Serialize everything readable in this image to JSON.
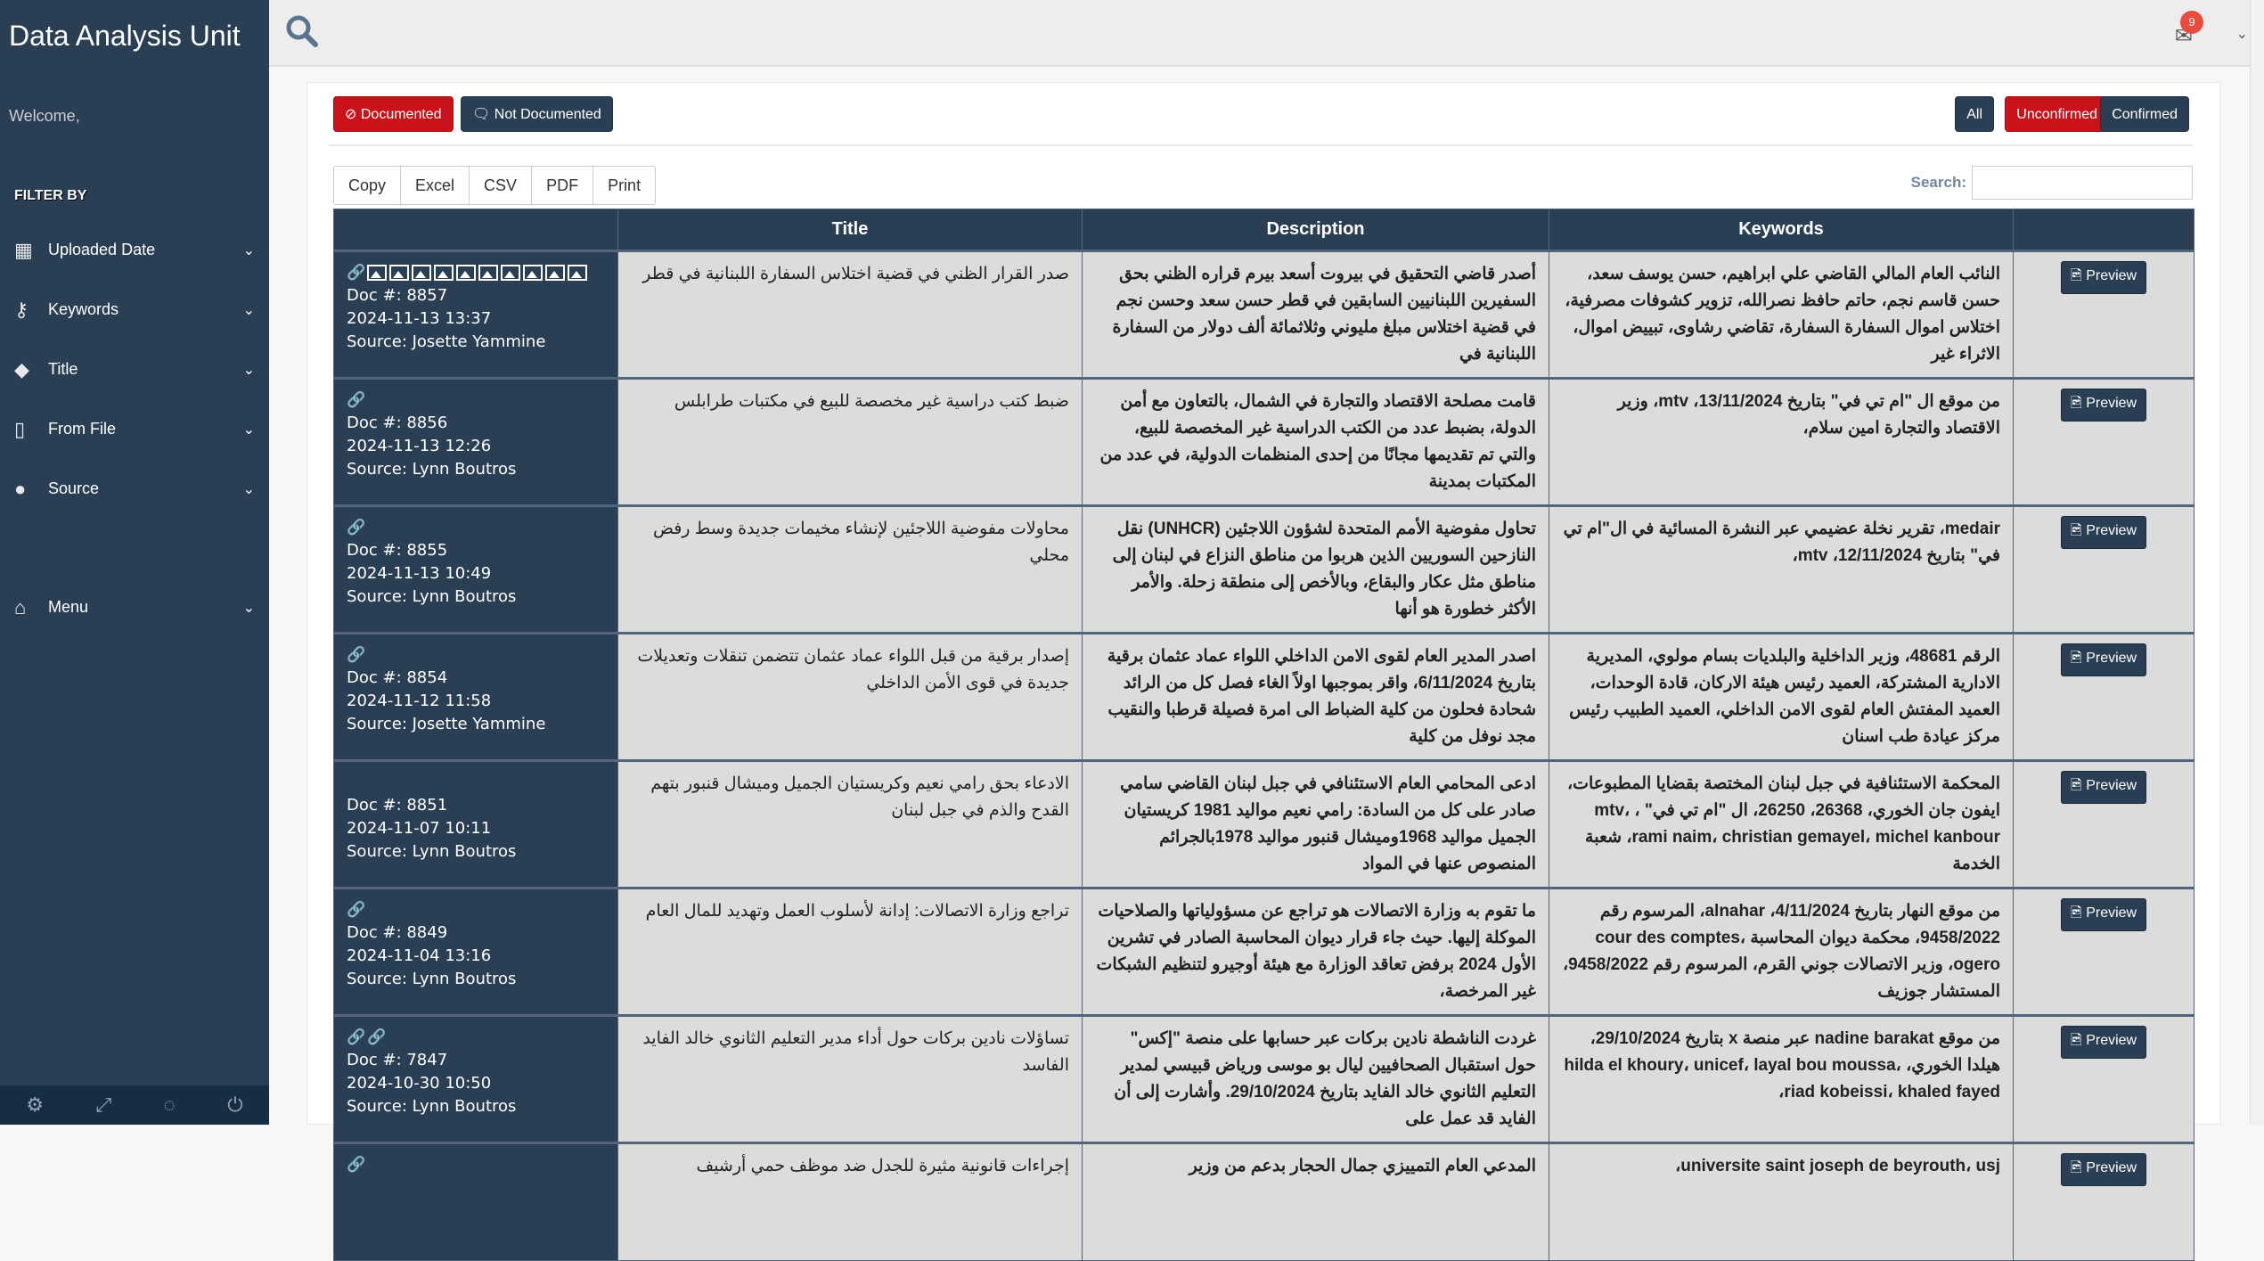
{
  "sidebar": {
    "brand": "Data Analysis Unit",
    "welcome": "Welcome,",
    "filter_by": "FILTER BY",
    "items": [
      {
        "label": "Uploaded Date",
        "icon": "calendar-icon"
      },
      {
        "label": "Keywords",
        "icon": "key-icon"
      },
      {
        "label": "Title",
        "icon": "tag-icon"
      },
      {
        "label": "From File",
        "icon": "file-icon"
      },
      {
        "label": "Source",
        "icon": "user-icon"
      },
      {
        "label": "Menu",
        "icon": "home-icon"
      }
    ],
    "footer_icons": [
      "gear-icon",
      "fullscreen-icon",
      "eye-slash-icon",
      "power-icon"
    ]
  },
  "topbar": {
    "notifications": "9"
  },
  "filters": {
    "documented": "Documented",
    "not_documented": "Not Documented",
    "all": "All",
    "unconfirmed": "Unconfirmed",
    "confirmed": "Confirmed"
  },
  "export": [
    "Copy",
    "Excel",
    "CSV",
    "PDF",
    "Print"
  ],
  "search": {
    "label": "Search:",
    "value": ""
  },
  "colors": {
    "navy": "#2a3f54",
    "red": "#c9121a"
  },
  "table": {
    "headers": [
      "",
      "Title",
      "Description",
      "Keywords",
      ""
    ],
    "preview_label": "Preview",
    "rows": [
      {
        "links": 1,
        "images": 10,
        "doc": "Doc #: 8857",
        "date": "2024-11-13 13:37",
        "source": "Source: Josette Yammine",
        "title": "صدر القرار الظني في قضية اختلاس السفارة اللبنانية في قطر",
        "description": "أصدر قاضي التحقيق في بيروت أسعد بيرم قراره الظني بحق السفيرين اللبنانيين السابقين في قطر حسن سعد وحسن نجم في قضية اختلاس مبلغ مليوني وثلاثمائة ألف دولار من السفارة اللبنانية في",
        "keywords": "النائب العام المالي القاضي علي ابراهيم، حسن يوسف سعد، حسن قاسم نجم، حاتم حافظ نصرالله، تزوير كشوفات مصرفية، اختلاس اموال السفارة السفارة، تقاضي رشاوى، تبييض اموال، الاثراء غير"
      },
      {
        "links": 1,
        "images": 0,
        "doc": "Doc #: 8856",
        "date": "2024-11-13 12:26",
        "source": "Source: Lynn Boutros",
        "title": "ضبط كتب دراسية غير مخصصة للبيع في مكتبات طرابلس",
        "description": "قامت مصلحة الاقتصاد والتجارة في الشمال، بالتعاون مع أمن الدولة، بضبط عدد من الكتب الدراسية غير المخصصة للبيع، والتي تم تقديمها مجانًا من إحدى المنظمات الدولية، في عدد من المكتبات بمدينة",
        "keywords": "من موقع ال \"ام تي في\" بتاريخ 13/11/2024، mtv، وزير الاقتصاد والتجارة امين سلام،"
      },
      {
        "links": 1,
        "images": 0,
        "doc": "Doc #: 8855",
        "date": "2024-11-13 10:49",
        "source": "Source: Lynn Boutros",
        "title": "محاولات مفوضية اللاجئين لإنشاء مخيمات جديدة وسط رفض محلي",
        "description": "تحاول مفوضية الأمم المتحدة لشؤون اللاجئين (UNHCR) نقل النازحين السوريين الذين هربوا من مناطق النزاع في لبنان إلى مناطق مثل عكار والبقاع، وبالأخص إلى منطقة زحلة. والأمر الأكثر خطورة هو أنها",
        "keywords": "medair، تقرير نخلة عضيمي عبر النشرة المسائية في ال\"ام تي في\" بتاريخ 12/11/2024، mtv،"
      },
      {
        "links": 1,
        "images": 0,
        "doc": "Doc #: 8854",
        "date": "2024-11-12 11:58",
        "source": "Source: Josette Yammine",
        "title": "إصدار برقية من قبل اللواء عماد عثمان تتضمن تنقلات وتعديلات جديدة في قوى الأمن الداخلي",
        "description": "اصدر المدير العام لقوى الامن الداخلي اللواء عماد عثمان برقية بتاريخ 6/11/2024، واقر بموجبها اولاً الغاء فصل كل من الرائد شحادة فحلون من كلية الضباط الى امرة فصيلة قرطبا والنقيب مجد نوفل من كلية",
        "keywords": "الرقم 48681، وزير الداخلية والبلديات بسام مولوي، المديرية الادارية المشتركة، العميد رئيس هيئة الاركان، قادة الوحدات، العميد المفتش العام لقوى الامن الداخلي، العميد الطبيب رئيس مركز عيادة طب اسنان"
      },
      {
        "links": 0,
        "images": 0,
        "doc": "Doc #: 8851",
        "date": "2024-11-07 10:11",
        "source": "Source: Lynn Boutros",
        "title": "الادعاء بحق رامي نعيم وكريستيان الجميل وميشال قنبور بتهم القدح والذم في جبل لبنان",
        "description": "ادعى المحامي العام الاستئنافي في جبل لبنان القاضي سامي صادر على كل من السادة: رامي نعيم مواليد 1981 كريستيان الجميل مواليد 1968وميشال قنبور مواليد 1978بالجرائم المنصوص عنها في المواد",
        "keywords": "المحكمة الاستئنافية في جبل لبنان المختصة بقضايا المطبوعات، ايفون جان الخوري، 26368، 26250، ال \"ام تي في\" ، mtv، rami naim، christian gemayel، michel kanbour، شعبة الخدمة"
      },
      {
        "links": 1,
        "images": 0,
        "doc": "Doc #: 8849",
        "date": "2024-11-04 13:16",
        "source": "Source: Lynn Boutros",
        "title": "تراجع وزارة الاتصالات: إدانة لأسلوب العمل وتهديد للمال العام",
        "description": "ما تقوم به وزارة الاتصالات هو تراجع عن مسؤولياتها والصلاحيات الموكلة إليها. حيث جاء قرار ديوان المحاسبة الصادر في تشرين الأول 2024 برفض تعاقد الوزارة مع هيئة أوجيرو لتنظيم الشبكات غير المرخصة،",
        "keywords": "من موقع النهار بتاريخ 4/11/2024، alnahar، المرسوم رقم 9458/2022، محكمة ديوان المحاسبة cour des comptes، ogero، وزير الاتصالات جوني القرم، المرسوم رقم 9458/2022، المستشار جوزيف"
      },
      {
        "links": 2,
        "images": 0,
        "doc": "Doc #: 7847",
        "date": "2024-10-30 10:50",
        "source": "Source: Lynn Boutros",
        "title": "تساؤلات نادين بركات حول أداء مدير التعليم الثانوي خالد الفايد الفاسد",
        "description": "غردت الناشطة نادين بركات عبر حسابها على منصة \"إكس\" حول استقبال الصحافيين ليال بو موسى ورياض قبيسي لمدير التعليم الثانوي خالد الفايد بتاريخ 29/10/2024. وأشارت إلى أن الفايد قد عمل على",
        "keywords": "من موقع nadine barakat عبر منصة x بتاريخ 29/10/2024، هيلدا الخوري، hilda el khoury، unicef، layal bou moussa، riad kobeissi، khaled fayed،"
      },
      {
        "links": 1,
        "images": 0,
        "doc": "",
        "date": "",
        "source": "",
        "title": "إجراءات قانونية مثيرة للجدل ضد موظف حمي أرشيف",
        "description": "المدعي العام التمييزي جمال الحجار بدعم من وزير",
        "keywords": "universite saint joseph de beyrouth، usj،"
      }
    ]
  }
}
